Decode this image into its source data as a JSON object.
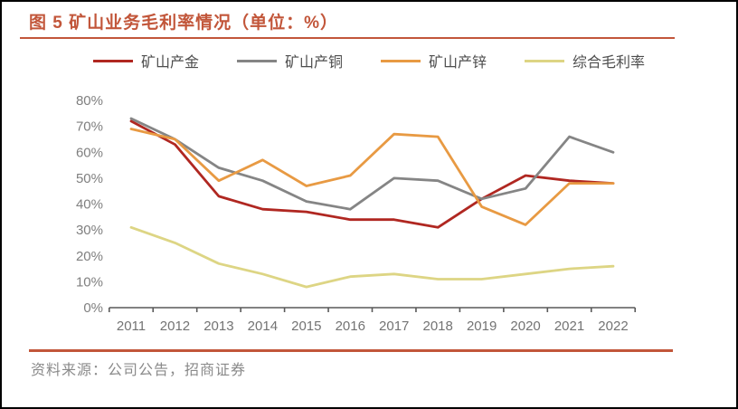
{
  "figure": {
    "title": "图 5 矿山业务毛利率情况（单位：%）",
    "source": "资料来源：公司公告，招商证券"
  },
  "colors": {
    "accent_rule": "#C2563A",
    "title_text": "#C2563A",
    "axis_line": "#595959",
    "y_axis_label": "#7F7F7F",
    "x_axis_label": "#737373",
    "legend_text": "#4D4D4D",
    "source_text": "#8A8A8A"
  },
  "chart_data": {
    "type": "line",
    "title": "图 5 矿山业务毛利率情况（单位：%）",
    "categories": [
      "2011",
      "2012",
      "2013",
      "2014",
      "2015",
      "2016",
      "2017",
      "2018",
      "2019",
      "2020",
      "2021",
      "2022"
    ],
    "series": [
      {
        "name": "矿山产金",
        "color": "#B02721",
        "values": [
          72,
          63,
          43,
          38,
          37,
          34,
          34,
          31,
          42,
          51,
          49,
          48
        ]
      },
      {
        "name": "矿山产铜",
        "color": "#858585",
        "values": [
          73,
          65,
          54,
          49,
          41,
          38,
          50,
          49,
          42,
          46,
          66,
          60
        ]
      },
      {
        "name": "矿山产锌",
        "color": "#E89A43",
        "values": [
          69,
          65,
          49,
          57,
          47,
          51,
          67,
          66,
          39,
          32,
          48,
          48
        ]
      },
      {
        "name": "综合毛利率",
        "color": "#DDD584",
        "values": [
          31,
          25,
          17,
          13,
          8,
          12,
          13,
          11,
          11,
          13,
          15,
          16
        ]
      }
    ],
    "ylim": [
      0,
      80
    ],
    "ytick_step": 10,
    "ytick_format": "percent",
    "grid": false,
    "legend_position": "top"
  }
}
